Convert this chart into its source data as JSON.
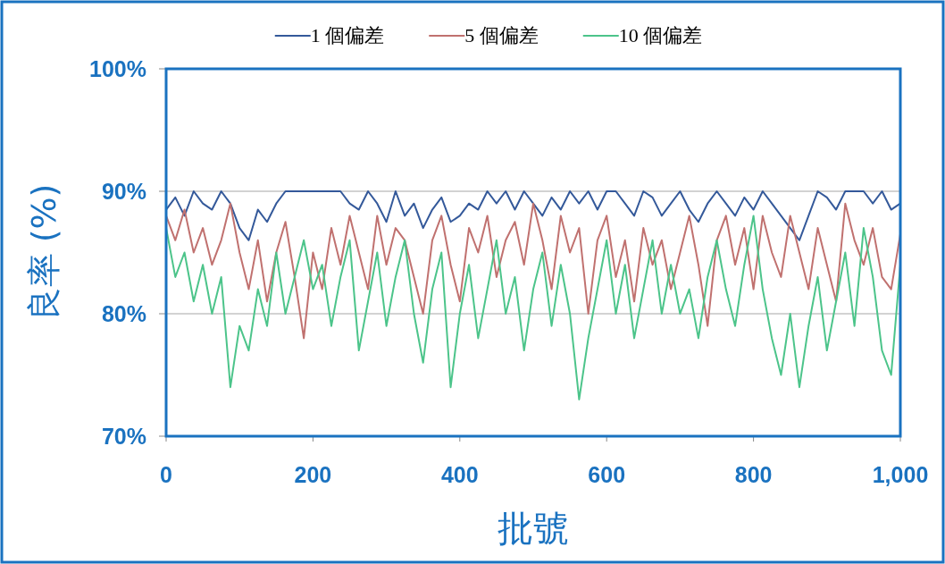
{
  "chart_data": {
    "type": "line",
    "xlabel": "批號",
    "ylabel": "良率 (%)",
    "x": [
      0,
      12.5,
      25,
      37.5,
      50,
      62.5,
      75,
      87.5,
      100,
      112.5,
      125,
      137.5,
      150,
      162.5,
      175,
      187.5,
      200,
      212.5,
      225,
      237.5,
      250,
      262.5,
      275,
      287.5,
      300,
      312.5,
      325,
      337.5,
      350,
      362.5,
      375,
      387.5,
      400,
      412.5,
      425,
      437.5,
      450,
      462.5,
      475,
      487.5,
      500,
      512.5,
      525,
      537.5,
      550,
      562.5,
      575,
      587.5,
      600,
      612.5,
      625,
      637.5,
      650,
      662.5,
      675,
      687.5,
      700,
      712.5,
      725,
      737.5,
      750,
      762.5,
      775,
      787.5,
      800,
      812.5,
      825,
      837.5,
      850,
      862.5,
      875,
      887.5,
      900,
      912.5,
      925,
      937.5,
      950,
      962.5,
      975,
      987.5,
      1000
    ],
    "series": [
      {
        "name": "1 個偏差",
        "color": "#34599a",
        "values": [
          88.5,
          89.5,
          88,
          90,
          89,
          88.5,
          90,
          89,
          87,
          86,
          88.5,
          87.5,
          89,
          90,
          90,
          90,
          90,
          90,
          90,
          90,
          89,
          88.5,
          90,
          89,
          87.5,
          90,
          88,
          89,
          87,
          88.5,
          89.5,
          87.5,
          88,
          89,
          88.5,
          90,
          89,
          90,
          88.5,
          90,
          89,
          88,
          89.5,
          88.5,
          90,
          89,
          90,
          88.5,
          90,
          90,
          89,
          88,
          90,
          89.5,
          88,
          89,
          90,
          88.5,
          87.5,
          89,
          90,
          89,
          88,
          89.5,
          88.5,
          90,
          89,
          88,
          87,
          86,
          88,
          90,
          89.5,
          88.5,
          90,
          90,
          90,
          89,
          90,
          88.5,
          89
        ]
      },
      {
        "name": "5 個偏差",
        "color": "#c0716f",
        "values": [
          88,
          86,
          88.5,
          85,
          87,
          84,
          86,
          89,
          85,
          82,
          86,
          81,
          85,
          87.5,
          83,
          78,
          85,
          82,
          87,
          84,
          88,
          85,
          82,
          88,
          84,
          87,
          86,
          83,
          80,
          86,
          88,
          84,
          81,
          87,
          85,
          88,
          83,
          86,
          87.5,
          84,
          89,
          86,
          82,
          88,
          85,
          87,
          80,
          86,
          88,
          83,
          86,
          81,
          87,
          84,
          86,
          82,
          85,
          88,
          84,
          79,
          86,
          88,
          84,
          87,
          82,
          88,
          85,
          83,
          88,
          85,
          82,
          87,
          84,
          81,
          89,
          86,
          84,
          87,
          83,
          82,
          86.5
        ]
      },
      {
        "name": "10 個偏差",
        "color": "#4cc48a",
        "values": [
          87,
          83,
          85,
          81,
          84,
          80,
          83,
          74,
          79,
          77,
          82,
          79,
          85,
          80,
          83,
          86,
          82,
          84,
          79,
          83,
          86,
          77,
          81,
          85,
          79,
          83,
          86,
          80,
          76,
          82,
          85,
          74,
          80,
          84,
          78,
          82,
          86,
          80,
          83,
          77,
          82,
          85,
          79,
          84,
          80,
          73,
          78,
          82,
          86,
          80,
          84,
          78,
          82,
          86,
          80,
          84,
          80,
          82,
          78,
          83,
          86,
          82,
          79,
          84,
          88,
          82,
          78,
          75,
          80,
          74,
          79,
          83,
          77,
          81,
          85,
          79,
          87,
          83,
          77,
          75,
          84
        ]
      }
    ],
    "xlim": [
      0,
      1000
    ],
    "ylim": [
      70,
      100
    ],
    "xticks": [
      0,
      200,
      400,
      600,
      800,
      {
        "value": 1000,
        "label": "1,000"
      }
    ],
    "yticks": [
      {
        "value": 70,
        "label": "70%"
      },
      {
        "value": 80,
        "label": "80%"
      },
      {
        "value": 90,
        "label": "90%"
      },
      {
        "value": 100,
        "label": "100%"
      }
    ],
    "grid": "y",
    "legend": "top",
    "marker": "none",
    "line_style": "solid"
  }
}
